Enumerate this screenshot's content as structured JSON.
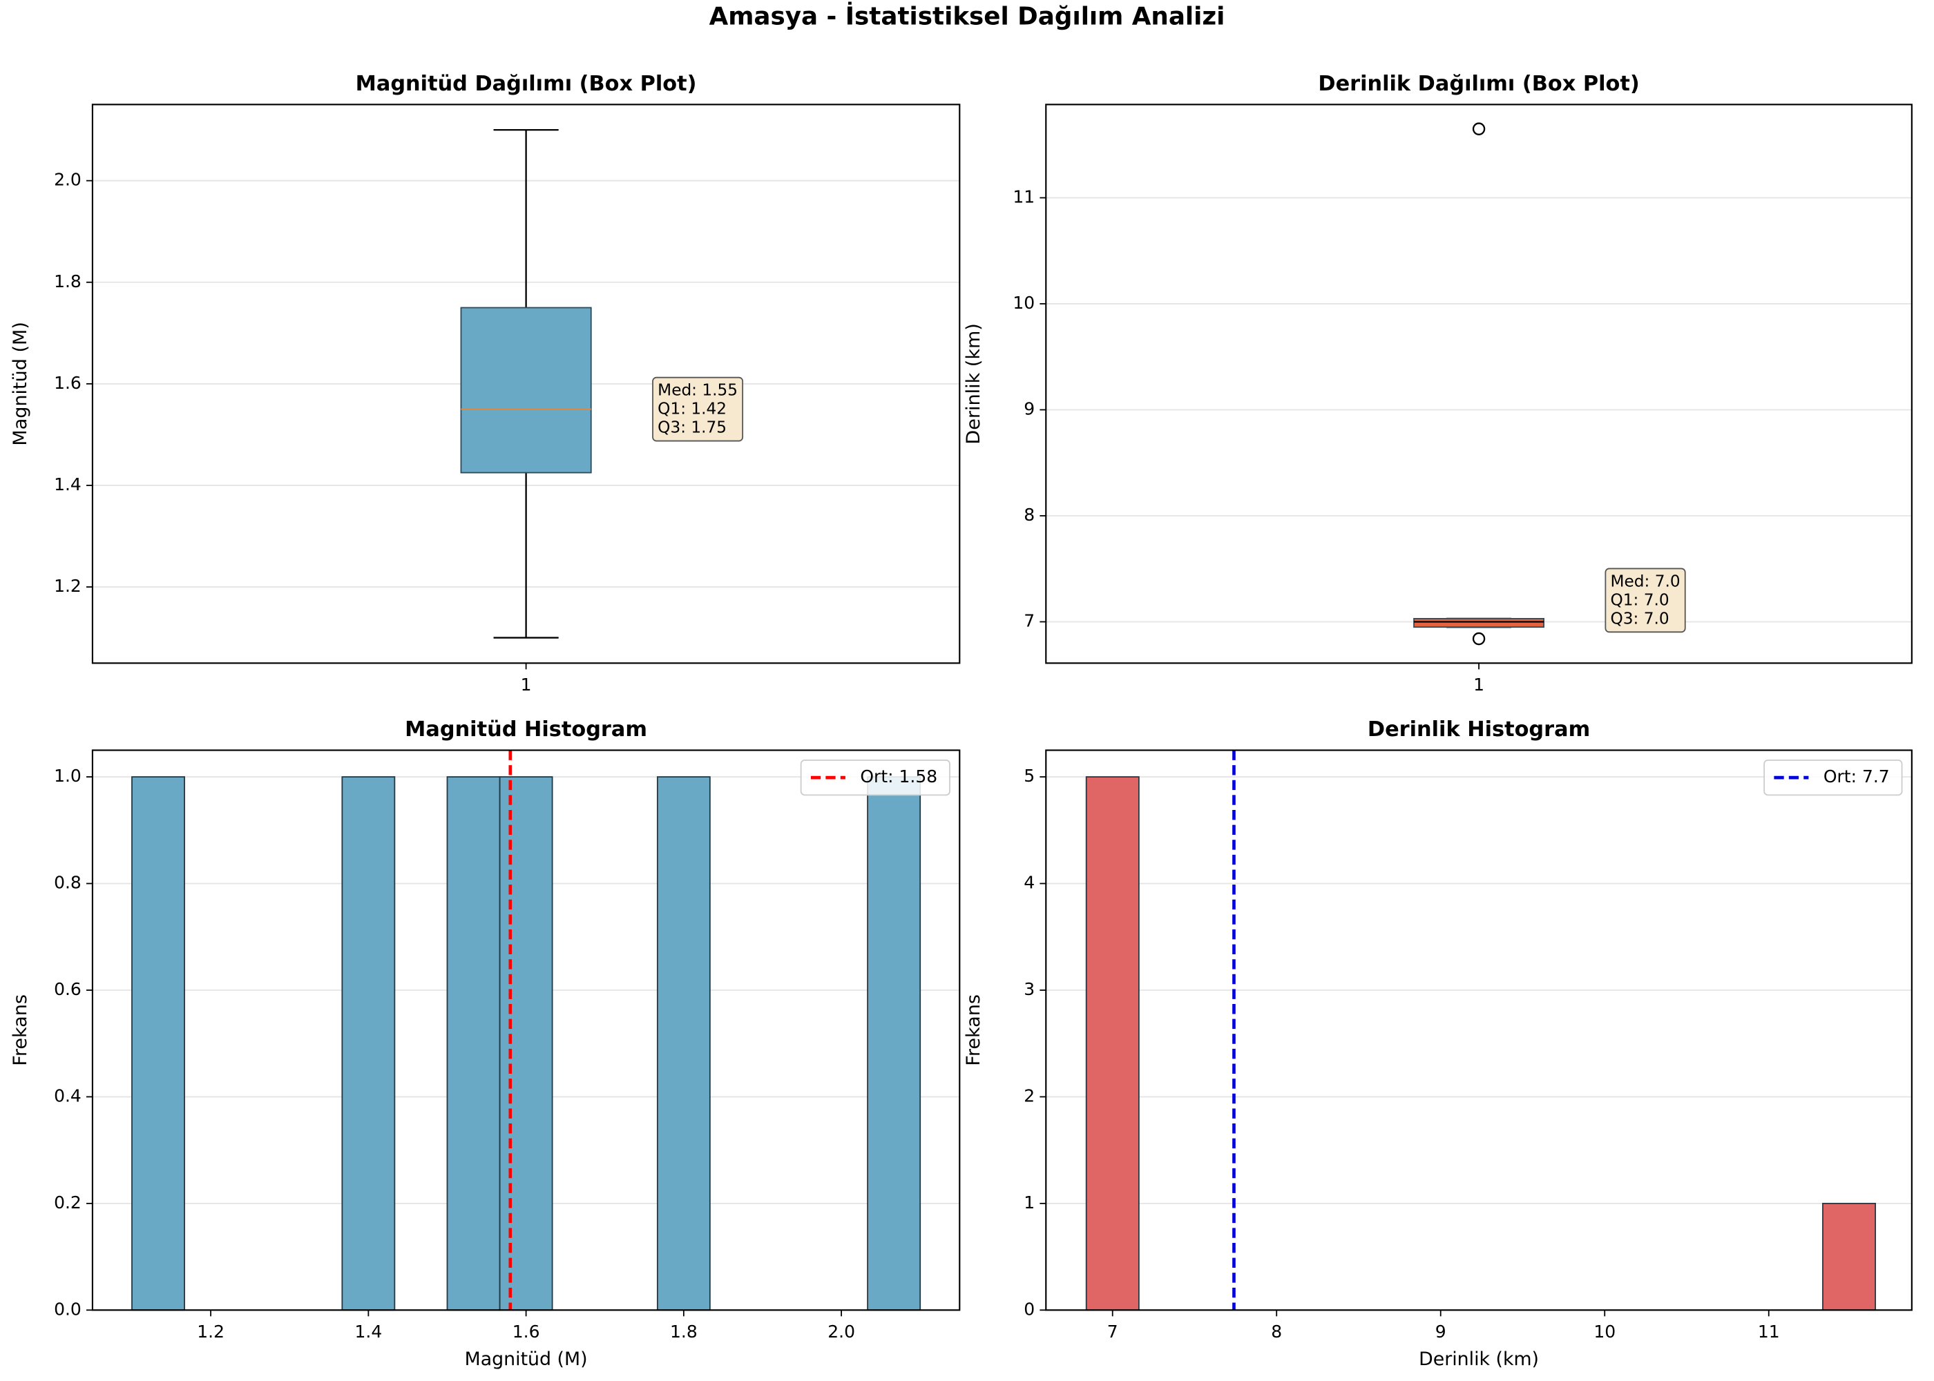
{
  "title": "Amasya - İstatistiksel Dağılım Analizi",
  "chart_data": [
    {
      "type": "box",
      "title": "Magnitüd Dağılımı (Box Plot)",
      "ylabel": "Magnitüd (M)",
      "categories": [
        "1"
      ],
      "color": "#6aa9c5",
      "median_color": "#e0883e",
      "ylim": [
        1.05,
        2.15
      ],
      "yticks": [
        1.2,
        1.4,
        1.6,
        1.8,
        {
          "value": 2.0,
          "label": "2.0"
        }
      ],
      "grid": "y",
      "boxes": [
        {
          "whislo": 1.1,
          "q1": 1.425,
          "med": 1.55,
          "q3": 1.75,
          "whishi": 2.1,
          "fliers": []
        }
      ],
      "annotation": [
        "Med: 1.55",
        "Q1: 1.42",
        "Q3: 1.75"
      ]
    },
    {
      "type": "box",
      "title": "Derinlik Dağılımı (Box Plot)",
      "ylabel": "Derinlik (km)",
      "categories": [
        "1"
      ],
      "color": "#e3643f",
      "median_color": "#000000",
      "ylim": [
        6.61,
        11.88
      ],
      "yticks": [
        7,
        8,
        9,
        10,
        11
      ],
      "grid": "y",
      "boxes": [
        {
          "whislo": 6.95,
          "q1": 6.95,
          "med": 7.0,
          "q3": 7.03,
          "whishi": 7.03,
          "fliers": [
            11.65,
            6.84
          ]
        }
      ],
      "annotation": [
        "Med: 7.0",
        "Q1: 7.0",
        "Q3: 7.0"
      ]
    },
    {
      "type": "histogram",
      "title": "Magnitüd Histogram",
      "xlabel": "Magnitüd (M)",
      "ylabel": "Frekans",
      "color": "#6aa9c5",
      "bins": [
        1.1,
        1.1667,
        1.2333,
        1.3,
        1.3667,
        1.4333,
        1.5,
        1.5667,
        1.6333,
        1.7,
        1.7667,
        1.8333,
        1.9,
        1.9667,
        2.0333,
        2.1
      ],
      "counts": [
        1,
        0,
        0,
        0,
        1,
        0,
        1,
        1,
        0,
        0,
        1,
        0,
        0,
        0,
        1
      ],
      "xlim": [
        1.05,
        2.15
      ],
      "ylim": [
        0,
        1.05
      ],
      "xticks": [
        1.2,
        1.4,
        1.6,
        1.8,
        {
          "value": 2.0,
          "label": "2.0"
        }
      ],
      "yticks": [
        {
          "value": 0,
          "label": "0.0"
        },
        0.2,
        0.4,
        0.6,
        0.8,
        {
          "value": 1.0,
          "label": "1.0"
        }
      ],
      "grid": "y",
      "legend": "upper right",
      "mean": {
        "name": "Ort: 1.58",
        "value": 1.58,
        "color": "#ff0000"
      }
    },
    {
      "type": "histogram",
      "title": "Derinlik Histogram",
      "xlabel": "Derinlik (km)",
      "ylabel": "Frekans",
      "color": "#e06666",
      "bins": [
        6.84,
        7.1607,
        7.4813,
        7.802,
        8.1227,
        8.4433,
        8.764,
        9.0847,
        9.4053,
        9.726,
        10.0467,
        10.3673,
        10.688,
        11.0087,
        11.3293,
        11.65
      ],
      "counts": [
        5,
        0,
        0,
        0,
        0,
        0,
        0,
        0,
        0,
        0,
        0,
        0,
        0,
        0,
        1
      ],
      "xlim": [
        6.594,
        11.872
      ],
      "ylim": [
        0,
        5.25
      ],
      "xticks": [
        7,
        8,
        9,
        10,
        11
      ],
      "yticks": [
        0,
        1,
        2,
        3,
        4,
        5
      ],
      "grid": "y",
      "legend": "upper right",
      "mean": {
        "name": "Ort: 7.7",
        "value": 7.74,
        "color": "#0000dd"
      }
    }
  ]
}
